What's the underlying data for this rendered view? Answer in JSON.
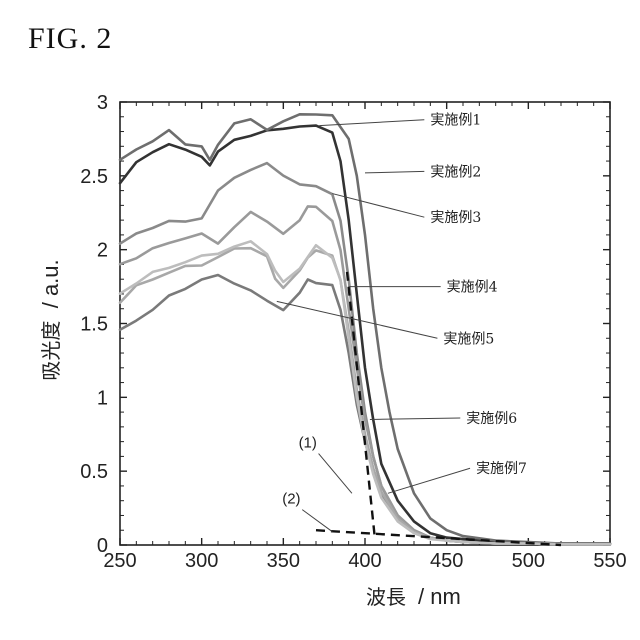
{
  "figure_label": "FIG. 2",
  "chart_data": {
    "type": "line",
    "xlabel_text": "波長",
    "xlabel_unit": "/ nm",
    "ylabel_text": "吸光度",
    "ylabel_unit": "/ a.u.",
    "xlim": [
      250,
      550
    ],
    "ylim": [
      0,
      3
    ],
    "xticks": [
      250,
      300,
      350,
      400,
      450,
      500,
      550
    ],
    "yticks": [
      0,
      0.5,
      1,
      1.5,
      2,
      2.5,
      3
    ],
    "ytick_labels": [
      "0",
      "0.5",
      "1",
      "1.5",
      "2",
      "2.5",
      "3"
    ],
    "series": [
      {
        "name": "実施例1",
        "color": "#333333",
        "x": [
          250,
          260,
          270,
          280,
          290,
          300,
          305,
          310,
          320,
          330,
          340,
          350,
          360,
          370,
          380,
          385,
          390,
          395,
          400,
          405,
          410,
          420,
          430,
          440,
          450,
          460,
          480,
          500,
          520,
          550
        ],
        "y": [
          2.45,
          2.6,
          2.65,
          2.72,
          2.68,
          2.62,
          2.58,
          2.66,
          2.74,
          2.78,
          2.8,
          2.82,
          2.84,
          2.83,
          2.8,
          2.6,
          2.2,
          1.7,
          1.2,
          0.85,
          0.55,
          0.3,
          0.16,
          0.08,
          0.05,
          0.04,
          0.02,
          0.015,
          0.01,
          0.01
        ]
      },
      {
        "name": "実施例2",
        "color": "#6e6e6e",
        "x": [
          250,
          260,
          270,
          280,
          290,
          300,
          305,
          310,
          320,
          330,
          340,
          350,
          360,
          370,
          380,
          390,
          395,
          400,
          405,
          410,
          415,
          420,
          430,
          440,
          450,
          460,
          480,
          500,
          520,
          550
        ],
        "y": [
          2.6,
          2.68,
          2.74,
          2.8,
          2.72,
          2.7,
          2.6,
          2.72,
          2.85,
          2.88,
          2.82,
          2.86,
          2.92,
          2.92,
          2.9,
          2.75,
          2.5,
          2.1,
          1.6,
          1.2,
          0.9,
          0.65,
          0.35,
          0.18,
          0.1,
          0.06,
          0.03,
          0.02,
          0.01,
          0.01
        ]
      },
      {
        "name": "実施例3",
        "color": "#8a8a8a",
        "x": [
          250,
          260,
          270,
          280,
          290,
          300,
          310,
          320,
          330,
          340,
          350,
          360,
          370,
          380,
          385,
          390,
          395,
          400,
          405,
          410,
          420,
          430,
          440,
          450,
          460,
          480,
          500,
          520,
          550
        ],
        "y": [
          2.05,
          2.1,
          2.15,
          2.2,
          2.18,
          2.22,
          2.4,
          2.48,
          2.55,
          2.58,
          2.5,
          2.45,
          2.42,
          2.38,
          2.2,
          1.8,
          1.3,
          0.9,
          0.6,
          0.4,
          0.2,
          0.1,
          0.05,
          0.03,
          0.02,
          0.01,
          0.01,
          0.005,
          0.005
        ]
      },
      {
        "name": "実施例4",
        "color": "#9a9a9a",
        "x": [
          250,
          260,
          270,
          280,
          290,
          300,
          310,
          320,
          330,
          340,
          350,
          360,
          365,
          370,
          380,
          385,
          390,
          395,
          400,
          405,
          410,
          420,
          430,
          440,
          450,
          460,
          480,
          500,
          520,
          550
        ],
        "y": [
          1.9,
          1.95,
          2.0,
          2.05,
          2.08,
          2.1,
          2.05,
          2.15,
          2.25,
          2.2,
          2.1,
          2.2,
          2.3,
          2.28,
          2.2,
          2.0,
          1.6,
          1.2,
          0.85,
          0.6,
          0.4,
          0.2,
          0.1,
          0.05,
          0.03,
          0.02,
          0.01,
          0.01,
          0.005,
          0.005
        ]
      },
      {
        "name": "実施例5",
        "color": "#7a7a7a",
        "x": [
          250,
          260,
          270,
          280,
          290,
          300,
          310,
          320,
          330,
          340,
          350,
          360,
          365,
          370,
          380,
          385,
          390,
          395,
          400,
          405,
          410,
          420,
          430,
          440,
          450,
          460,
          480,
          500,
          520,
          550
        ],
        "y": [
          1.45,
          1.52,
          1.6,
          1.68,
          1.74,
          1.8,
          1.82,
          1.78,
          1.72,
          1.65,
          1.6,
          1.7,
          1.8,
          1.78,
          1.75,
          1.6,
          1.3,
          0.95,
          0.7,
          0.5,
          0.35,
          0.18,
          0.09,
          0.05,
          0.03,
          0.02,
          0.01,
          0.01,
          0.005,
          0.005
        ]
      },
      {
        "name": "実施例6",
        "color": "#a8a8a8",
        "x": [
          250,
          260,
          270,
          280,
          290,
          300,
          310,
          320,
          330,
          340,
          345,
          350,
          360,
          365,
          370,
          380,
          385,
          390,
          395,
          400,
          405,
          410,
          420,
          430,
          440,
          450,
          460,
          480,
          500,
          520,
          550
        ],
        "y": [
          1.65,
          1.75,
          1.8,
          1.85,
          1.88,
          1.9,
          1.95,
          2.0,
          2.02,
          1.95,
          1.8,
          1.75,
          1.85,
          1.95,
          2.0,
          1.95,
          1.8,
          1.45,
          1.05,
          0.75,
          0.52,
          0.36,
          0.18,
          0.09,
          0.05,
          0.03,
          0.02,
          0.01,
          0.01,
          0.005,
          0.005
        ]
      },
      {
        "name": "実施例7",
        "color": "#bdbdbd",
        "x": [
          250,
          260,
          270,
          280,
          290,
          300,
          310,
          320,
          330,
          340,
          345,
          350,
          360,
          370,
          380,
          385,
          390,
          395,
          400,
          405,
          410,
          420,
          430,
          440,
          450,
          460,
          480,
          500,
          520,
          550
        ],
        "y": [
          1.7,
          1.78,
          1.84,
          1.88,
          1.92,
          1.95,
          1.98,
          2.02,
          2.05,
          1.98,
          1.85,
          1.78,
          1.88,
          2.02,
          1.95,
          1.8,
          1.4,
          1.0,
          0.7,
          0.48,
          0.32,
          0.16,
          0.08,
          0.04,
          0.03,
          0.02,
          0.01,
          0.01,
          0.005,
          0.005
        ]
      }
    ],
    "tangent_lines": [
      {
        "name": "(1)",
        "x": [
          389,
          406
        ],
        "y": [
          1.85,
          0.05
        ]
      },
      {
        "name": "(2)",
        "x": [
          370,
          520
        ],
        "y": [
          0.1,
          0.0
        ]
      }
    ],
    "label_positions": [
      {
        "text": "実施例1",
        "target": [
          372,
          2.84
        ],
        "anchor": [
          440,
          2.88
        ]
      },
      {
        "text": "実施例2",
        "target": [
          400,
          2.52
        ],
        "anchor": [
          440,
          2.53
        ]
      },
      {
        "text": "実施例3",
        "target": [
          380,
          2.38
        ],
        "anchor": [
          440,
          2.22
        ]
      },
      {
        "text": "実施例4",
        "target": [
          390,
          1.75
        ],
        "anchor": [
          450,
          1.75
        ]
      },
      {
        "text": "実施例5",
        "target": [
          346,
          1.65
        ],
        "anchor": [
          448,
          1.4
        ]
      },
      {
        "text": "実施例6",
        "target": [
          403,
          0.85
        ],
        "anchor": [
          462,
          0.86
        ]
      },
      {
        "text": "実施例7",
        "target": [
          414,
          0.35
        ],
        "anchor": [
          468,
          0.52
        ]
      },
      {
        "text": "(1)",
        "target": [
          392,
          0.35
        ],
        "anchor": [
          363,
          0.66
        ]
      },
      {
        "text": "(2)",
        "target": [
          380,
          0.09
        ],
        "anchor": [
          353,
          0.28
        ]
      }
    ]
  }
}
